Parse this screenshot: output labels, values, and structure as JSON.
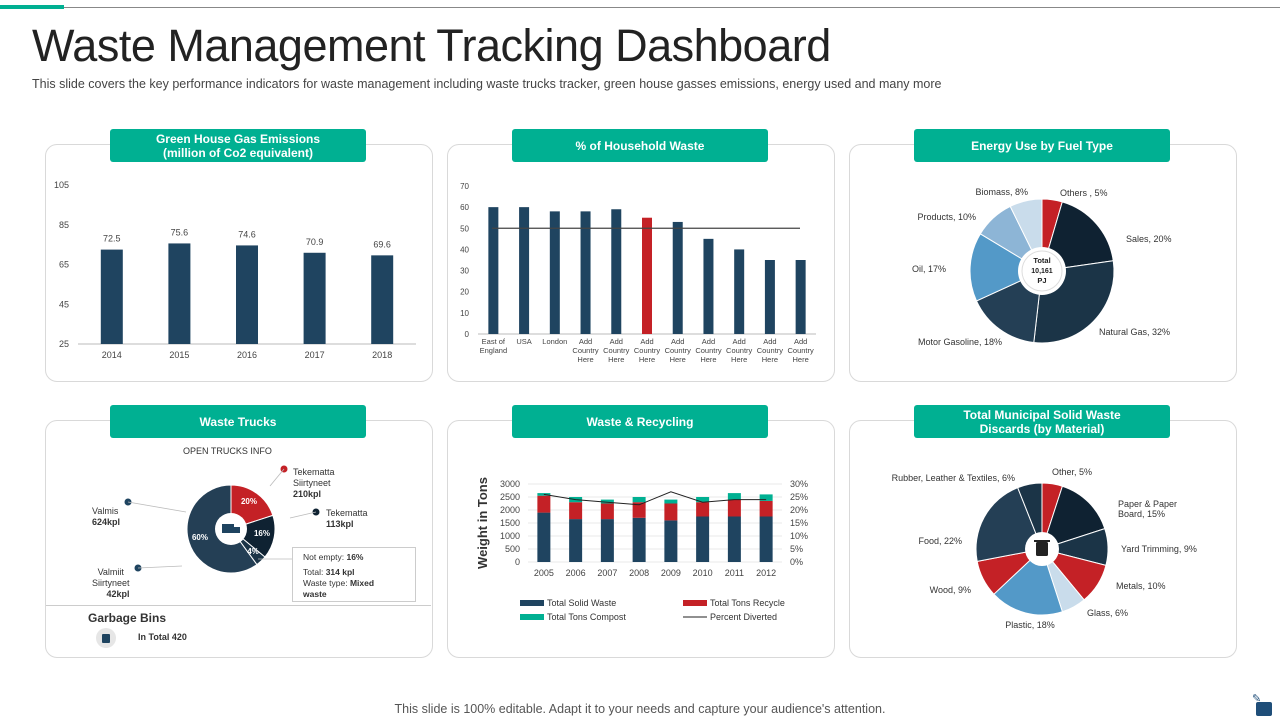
{
  "header": {
    "title": "Waste Management Tracking Dashboard",
    "subtitle": "This slide covers the key performance indicators for waste management including waste trucks tracker, green house gasses emissions, energy used and many more"
  },
  "panels": {
    "ghg": {
      "title_line1": "Green House Gas Emissions",
      "title_line2": "(million of Co2 equivalent)"
    },
    "household": {
      "title": "% of Household Waste"
    },
    "energy": {
      "title": "Energy Use by Fuel Type"
    },
    "trucks": {
      "title": "Waste Trucks"
    },
    "recycling": {
      "title": "Waste & Recycling"
    },
    "msw": {
      "title_line1": "Total Municipal Solid Waste",
      "title_line2": "Discards (by Material)"
    }
  },
  "trucks": {
    "open_info": "OPEN TRUCKS INFO",
    "valmis_name": "Valmis",
    "valmis_value": "624kpl",
    "valmiit_name_1": "Valmiit",
    "valmiit_name_2": "Siirtyneet",
    "valmiit_value": "42kpl",
    "tek1_name_1": "Tekematta",
    "tek1_name_2": "Siirtyneet",
    "tek1_value": "210kpl",
    "tek2_name": "Tekematta",
    "tek2_value": "113kpl",
    "info_not_empty_label": "Not empty: ",
    "info_not_empty_value": "16%",
    "info_total_label": "Total: ",
    "info_total_value": "314 kpl",
    "info_type_label": "Waste type: ",
    "info_type_value_1": "Mixed",
    "info_type_value_2": "waste",
    "slice_labels": [
      "20%",
      "16%",
      "4%",
      "60%"
    ],
    "garbage_title": "Garbage Bins",
    "garbage_total": "In Total 420"
  },
  "footer": {
    "text": "This slide is 100% editable. Adapt it to your needs and capture your audience's attention."
  },
  "colors": {
    "accent": "#00B092",
    "navy": "#1F4460",
    "red": "#C42126",
    "blue": "#5399C8",
    "light_blue": "#9EC3E0",
    "pale_blue": "#C9DCEB",
    "dark": "#0F2232"
  },
  "chart_data": [
    {
      "id": "ghg",
      "type": "bar",
      "categories": [
        "2014",
        "2015",
        "2016",
        "2017",
        "2018"
      ],
      "values": [
        72.5,
        75.6,
        74.6,
        70.9,
        69.6
      ],
      "ylim": [
        25,
        105
      ],
      "yticks": [
        25,
        45,
        65,
        85,
        105
      ],
      "data_labels": [
        "72.5",
        "75.6",
        "74.6",
        "70.9",
        "69.6"
      ],
      "grid": false
    },
    {
      "id": "household",
      "type": "bar",
      "categories": [
        "East of England",
        "USA",
        "London",
        "Add Country Here",
        "Add Country Here",
        "Add Country Here",
        "Add Country Here",
        "Add Country Here",
        "Add Country Here",
        "Add Country Here",
        "Add Country Here"
      ],
      "values": [
        60,
        60,
        58,
        58,
        59,
        55,
        53,
        45,
        40,
        35,
        35
      ],
      "highlight_index": 5,
      "reference_line": 50,
      "ylim": [
        0,
        70
      ],
      "yticks": [
        0,
        10,
        20,
        30,
        40,
        50,
        60,
        70
      ]
    },
    {
      "id": "energy",
      "type": "pie",
      "slices": [
        {
          "label": "Others , 5%",
          "value": 5,
          "color": "#C42126"
        },
        {
          "label": "Sales, 20%",
          "value": 20,
          "color": "#0F2232"
        },
        {
          "label": "Natural Gas, 32%",
          "value": 32,
          "color": "#1B3447"
        },
        {
          "label": "Motor Gasoline, 18%",
          "value": 18,
          "color": "#243F55"
        },
        {
          "label": "Oil, 17%",
          "value": 17,
          "color": "#5399C8"
        },
        {
          "label": "Products, 10%",
          "value": 10,
          "color": "#8DB5D6"
        },
        {
          "label": "Biomass, 8%",
          "value": 8,
          "color": "#C9DCEB"
        }
      ],
      "center_label": [
        "Total",
        "10,161",
        "PJ"
      ]
    },
    {
      "id": "recycling",
      "type": "bar",
      "stacked": true,
      "categories": [
        "2005",
        "2006",
        "2007",
        "2008",
        "2009",
        "2010",
        "2011",
        "2012"
      ],
      "series": [
        {
          "name": "Total Solid Waste",
          "values": [
            1900,
            1650,
            1650,
            1700,
            1600,
            1750,
            1750,
            1750
          ],
          "color": "#1F4460"
        },
        {
          "name": "Total Tons Recycle",
          "values": [
            650,
            650,
            600,
            600,
            650,
            550,
            650,
            600
          ],
          "color": "#C42126"
        },
        {
          "name": "Total Tons Compost",
          "values": [
            100,
            200,
            150,
            200,
            150,
            200,
            250,
            250
          ],
          "color": "#00B092"
        },
        {
          "name": "Percent Diverted",
          "values": [
            26,
            24,
            23,
            22,
            27,
            23,
            24,
            24
          ],
          "color": "#222222",
          "axis": "right"
        }
      ],
      "ylabel": "Weight in Tons",
      "ylim": [
        0,
        3000
      ],
      "yticks": [
        0,
        500,
        1000,
        1500,
        2000,
        2500,
        3000
      ],
      "y2lim": [
        0,
        30
      ],
      "y2ticks": [
        "0%",
        "5%",
        "10%",
        "15%",
        "20%",
        "25%",
        "30%"
      ]
    },
    {
      "id": "msw",
      "type": "pie",
      "slices": [
        {
          "label": "Other, 5%",
          "value": 5,
          "color": "#C42126"
        },
        {
          "label": "Paper & Paper Board, 15%",
          "value": 15,
          "color": "#0F2232"
        },
        {
          "label": "Yard Trimming, 9%",
          "value": 9,
          "color": "#1B3447"
        },
        {
          "label": "Metals, 10%",
          "value": 10,
          "color": "#C42126"
        },
        {
          "label": "Glass, 6%",
          "value": 6,
          "color": "#C9DCEB"
        },
        {
          "label": "Plastic, 18%",
          "value": 18,
          "color": "#5399C8"
        },
        {
          "label": "Wood, 9%",
          "value": 9,
          "color": "#C42126"
        },
        {
          "label": "Food, 22%",
          "value": 22,
          "color": "#243F55"
        },
        {
          "label": "Rubber, Leather & Textiles, 6%",
          "value": 6,
          "color": "#1B3447"
        }
      ]
    },
    {
      "id": "trucks",
      "type": "pie",
      "slices": [
        {
          "label": "20%",
          "value": 20,
          "color": "#C42126"
        },
        {
          "label": "16%",
          "value": 16,
          "color": "#0F2232"
        },
        {
          "label": "4%",
          "value": 4,
          "color": "#1B3447"
        },
        {
          "label": "60%",
          "value": 60,
          "color": "#243F55"
        }
      ]
    }
  ]
}
